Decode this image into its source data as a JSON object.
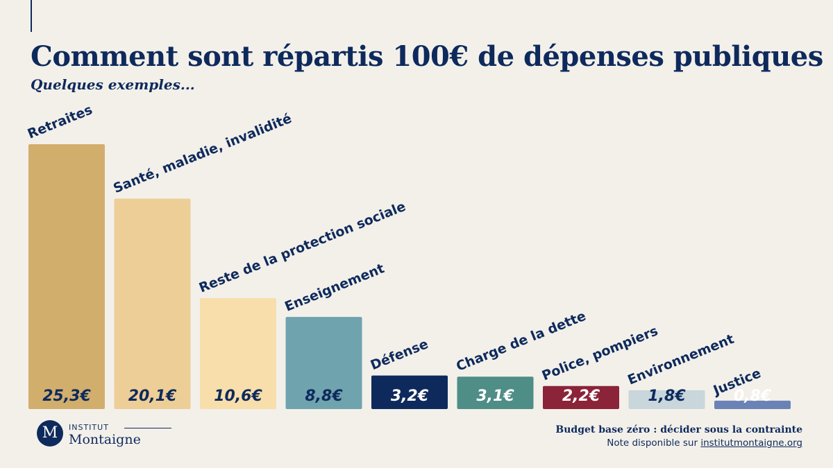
{
  "header": {
    "title": "Comment sont répartis 100€ de dépenses publiques ?",
    "subtitle": "Quelques exemples..."
  },
  "chart_data": {
    "type": "bar",
    "title": "Comment sont répartis 100€ de dépenses publiques ?",
    "subtitle": "Quelques exemples...",
    "xlabel": "",
    "ylabel": "",
    "unit": "€",
    "ylim": [
      0,
      25.3
    ],
    "grid": false,
    "categories": [
      "Retraites",
      "Santé, maladie, invalidité",
      "Reste de la protection sociale",
      "Enseignement",
      "Défense",
      "Charge de la dette",
      "Police, pompiers",
      "Environnement",
      "Justice"
    ],
    "values": [
      25.3,
      20.1,
      10.6,
      8.8,
      3.2,
      3.1,
      2.2,
      1.8,
      0.8
    ],
    "value_labels": [
      "25,3€",
      "20,1€",
      "10,6€",
      "8,8€",
      "3,2€",
      "3,1€",
      "2,2€",
      "1,8€",
      "0,8€"
    ],
    "colors": [
      "#d2ae6d",
      "#edce96",
      "#f7deab",
      "#6fa3ae",
      "#0e2a5c",
      "#4f8d87",
      "#8b2339",
      "#c9d6db",
      "#6a82b5"
    ],
    "value_label_colors": [
      "#0e2a5c",
      "#0e2a5c",
      "#0e2a5c",
      "#0e2a5c",
      "#ffffff",
      "#ffffff",
      "#ffffff",
      "#0e2a5c",
      "#ffffff"
    ]
  },
  "logo": {
    "monogram": "M",
    "line1": "INSTITUT",
    "line2": "Montaigne"
  },
  "footer": {
    "title": "Budget base zéro : décider sous la contrainte",
    "note_prefix": "Note disponible sur ",
    "note_link": "institutmontaigne.org"
  }
}
